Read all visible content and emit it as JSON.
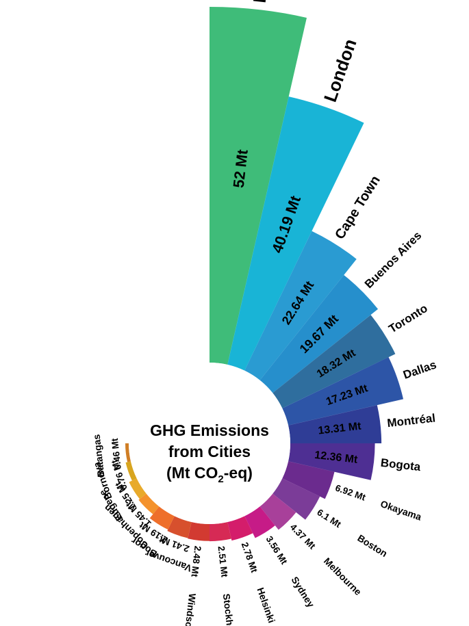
{
  "chart_data": {
    "type": "radial-bar",
    "title_lines": [
      "GHG Emissions",
      "from Cities"
    ],
    "unit_line": {
      "prefix": "(Mt CO",
      "subscript": "2",
      "suffix": "-eq)"
    },
    "categories": [
      "New York",
      "London",
      "Cape Town",
      "Buenos Aires",
      "Toronto",
      "Dallas",
      "Montréal",
      "Bogota",
      "Okayama",
      "Boston",
      "Melbourne",
      "Sydney",
      "Helsinki",
      "Stockholm",
      "Windsor",
      "Vancouver",
      "Bogor",
      "Copenhagen",
      "Eugene",
      "Bornova",
      "Batangas"
    ],
    "values": [
      52,
      40.19,
      22.64,
      19.67,
      18.32,
      17.23,
      13.31,
      12.36,
      6.92,
      6.1,
      4.37,
      3.56,
      2.78,
      2.51,
      2.48,
      2.41,
      2.19,
      1.45,
      1.25,
      0.76,
      0.46
    ],
    "value_labels": [
      "52 Mt",
      "40.19 Mt",
      "22.64 Mt",
      "19.67 Mt",
      "18.32 Mt",
      "17.23 Mt",
      "13.31 Mt",
      "12.36 Mt",
      "6.92 Mt",
      "6.1 Mt",
      "4.37 Mt",
      "3.56 Mt",
      "2.78 Mt",
      "2.51 Mt",
      "2.48 Mt",
      "2.41 Mt",
      "2.19 Mt",
      "1.45 Mt",
      "1.25 Mt",
      "0.76 Mt",
      "0.46 Mt"
    ],
    "colors": [
      "#3fbc79",
      "#19b4d6",
      "#2a9bd2",
      "#268fcc",
      "#2f6e9e",
      "#2d55a7",
      "#2f3d96",
      "#4e2f93",
      "#6b2b8e",
      "#7b3c98",
      "#a8409a",
      "#c61b87",
      "#d41d6b",
      "#d62a55",
      "#d23a31",
      "#d7502d",
      "#ee6f2a",
      "#f4922c",
      "#e8aa2b",
      "#d8a51f",
      "#d07e25"
    ],
    "value_axis": [
      0,
      52
    ]
  }
}
